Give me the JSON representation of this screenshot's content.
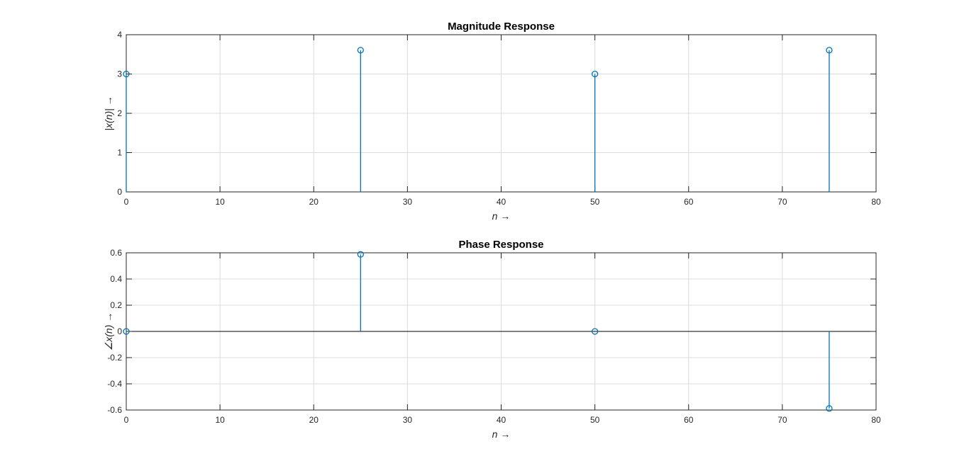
{
  "chart_data": [
    {
      "type": "stem",
      "title": "Magnitude Response",
      "xlabel": "n →",
      "ylabel": "|x(n)| →",
      "xlim": [
        0,
        80
      ],
      "ylim": [
        0,
        4
      ],
      "xticks": [
        0,
        10,
        20,
        30,
        40,
        50,
        60,
        70,
        80
      ],
      "xtick_labels": [
        "0",
        "10",
        "20",
        "30",
        "40",
        "50",
        "60",
        "70",
        "80"
      ],
      "yticks": [
        0,
        1,
        2,
        3,
        4
      ],
      "ytick_labels": [
        "0",
        "1",
        "2",
        "3",
        "4"
      ],
      "grid": true,
      "series": [
        {
          "x": [
            0,
            25,
            50,
            75
          ],
          "y": [
            3,
            3.606,
            3,
            3.606
          ],
          "color": "#0072bd"
        }
      ]
    },
    {
      "type": "stem",
      "title": "Phase Response",
      "xlabel": "n →",
      "ylabel": "∠x(n) →",
      "xlim": [
        0,
        80
      ],
      "ylim": [
        -0.6,
        0.6
      ],
      "xticks": [
        0,
        10,
        20,
        30,
        40,
        50,
        60,
        70,
        80
      ],
      "xtick_labels": [
        "0",
        "10",
        "20",
        "30",
        "40",
        "50",
        "60",
        "70",
        "80"
      ],
      "yticks": [
        -0.6,
        -0.4,
        -0.2,
        0,
        0.2,
        0.4,
        0.6
      ],
      "ytick_labels": [
        "-0.6",
        "-0.4",
        "-0.2",
        "0",
        "0.2",
        "0.4",
        "0.6"
      ],
      "grid": true,
      "series": [
        {
          "x": [
            0,
            25,
            50,
            75
          ],
          "y": [
            0,
            0.588,
            0,
            -0.588
          ],
          "color": "#0072bd"
        }
      ]
    }
  ]
}
